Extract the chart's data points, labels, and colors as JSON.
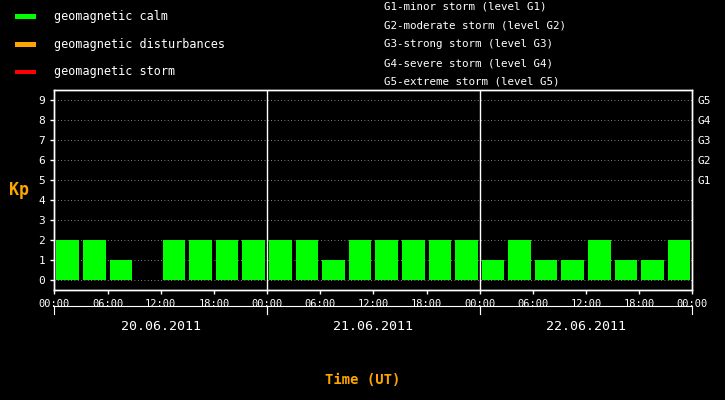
{
  "background_color": "#000000",
  "plot_bg_color": "#000000",
  "bar_color_calm": "#00ff00",
  "bar_color_disturbance": "#ffa500",
  "bar_color_storm": "#ff0000",
  "text_color": "#ffffff",
  "axis_color": "#ffffff",
  "grid_color": "#ffffff",
  "ylabel_color": "#ffa500",
  "xlabel_color": "#ffa500",
  "kp_values": [
    2,
    2,
    1,
    0,
    2,
    2,
    2,
    2,
    2,
    2,
    1,
    2,
    2,
    2,
    2,
    2,
    1,
    2,
    1,
    1,
    2,
    1,
    1,
    2
  ],
  "day_labels": [
    "20.06.2011",
    "21.06.2011",
    "22.06.2011"
  ],
  "ylabel": "Kp",
  "xlabel": "Time (UT)",
  "ylim": [
    0,
    9
  ],
  "yticks": [
    0,
    1,
    2,
    3,
    4,
    5,
    6,
    7,
    8,
    9
  ],
  "right_ticks": [
    5,
    6,
    7,
    8,
    9
  ],
  "right_labels": [
    "G1",
    "G2",
    "G3",
    "G4",
    "G5"
  ],
  "legend_items": [
    {
      "label": "geomagnetic calm",
      "color": "#00ff00"
    },
    {
      "label": "geomagnetic disturbances",
      "color": "#ffa500"
    },
    {
      "label": "geomagnetic storm",
      "color": "#ff0000"
    }
  ],
  "storm_text": [
    "G1-minor storm (level G1)",
    "G2-moderate storm (level G2)",
    "G3-strong storm (level G3)",
    "G4-severe storm (level G4)",
    "G5-extreme storm (level G5)"
  ],
  "num_days": 3,
  "bars_per_day": 8,
  "bar_width": 0.85,
  "time_names": [
    "00:00",
    "06:00",
    "12:00",
    "18:00"
  ]
}
